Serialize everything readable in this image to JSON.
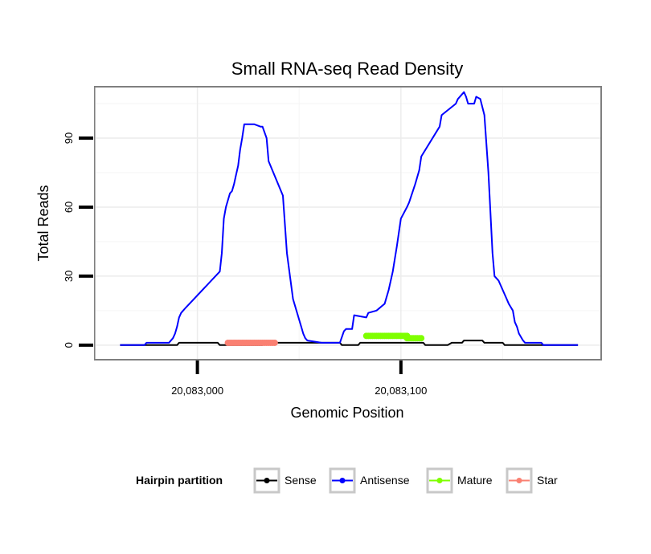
{
  "chart_data": {
    "type": "line",
    "title": "Small RNA-seq Read Density",
    "xlabel": "Genomic Position",
    "ylabel": "Total Reads",
    "xlim": [
      20082950,
      20083198
    ],
    "ylim": [
      -6,
      112
    ],
    "x_ticks": [
      {
        "value": 20083000,
        "label": "20,083,000"
      },
      {
        "value": 20083100,
        "label": "20,083,100"
      }
    ],
    "y_ticks": [
      {
        "value": 0,
        "label": "0"
      },
      {
        "value": 30,
        "label": "30"
      },
      {
        "value": 60,
        "label": "60"
      },
      {
        "value": 90,
        "label": "90"
      }
    ],
    "grid": true,
    "legend": {
      "title": "Hairpin partition",
      "position": "bottom",
      "entries": [
        {
          "name": "Sense",
          "color": "#000000"
        },
        {
          "name": "Antisense",
          "color": "#0000ff"
        },
        {
          "name": "Mature",
          "color": "#7fff00"
        },
        {
          "name": "Star",
          "color": "#fa8072"
        }
      ]
    },
    "series": [
      {
        "name": "Sense",
        "color": "#000000",
        "width": 2,
        "x": [
          20082962,
          20082990,
          20082991,
          20083010,
          20083011,
          20083032,
          20083033,
          20083070,
          20083071,
          20083079,
          20083080,
          20083085,
          20083106,
          20083111,
          20083112,
          20083123,
          20083125,
          20083130,
          20083131,
          20083140,
          20083141,
          20083145,
          20083146,
          20083150,
          20083151,
          20083187
        ],
        "y": [
          0,
          0,
          1,
          1,
          0,
          0,
          1,
          1,
          0,
          0,
          1,
          1,
          1,
          1,
          0,
          0,
          1,
          1,
          2,
          2,
          1,
          1,
          1,
          1,
          0,
          0
        ]
      },
      {
        "name": "Antisense",
        "color": "#0000ff",
        "width": 2,
        "x": [
          20082962,
          20082974,
          20082975,
          20082986,
          20082987,
          20082988,
          20082989,
          20082990,
          20082991,
          20082992,
          20082993,
          20082994,
          20083011,
          20083012,
          20083013,
          20083014,
          20083015,
          20083016,
          20083017,
          20083018,
          20083019,
          20083020,
          20083021,
          20083022,
          20083023,
          20083028,
          20083031,
          20083032,
          20083034,
          20083035,
          20083042,
          20083044,
          20083047,
          20083051,
          20083052,
          20083053,
          20083054,
          20083061,
          20083064,
          20083070,
          20083072,
          20083073,
          20083076,
          20083077,
          20083083,
          20083084,
          20083088,
          20083092,
          20083094,
          20083096,
          20083098,
          20083100,
          20083103,
          20083104,
          20083107,
          20083109,
          20083110,
          20083119,
          20083120,
          20083127,
          20083128,
          20083131,
          20083132,
          20083133,
          20083134,
          20083135,
          20083136,
          20083137,
          20083139,
          20083141,
          20083143,
          20083145,
          20083146,
          20083148,
          20083152,
          20083153,
          20083155,
          20083156,
          20083157,
          20083158,
          20083160,
          20083161,
          20083169,
          20083170,
          20083175,
          20083176,
          20083187
        ],
        "y": [
          0,
          0,
          1,
          1,
          2,
          3,
          5,
          8,
          12,
          14,
          15,
          16,
          32,
          40,
          55,
          60,
          63,
          66,
          67,
          70,
          74,
          78,
          85,
          90,
          96,
          96,
          95,
          95,
          90,
          80,
          65,
          40,
          20,
          8,
          5,
          3,
          2,
          1,
          1,
          1,
          6,
          7,
          7,
          13,
          12,
          14,
          15,
          18,
          24,
          32,
          43,
          55,
          60,
          62,
          70,
          76,
          82,
          95,
          100,
          105,
          107,
          110,
          108,
          105,
          105,
          105,
          105,
          108,
          107,
          100,
          75,
          40,
          30,
          28,
          20,
          18,
          15,
          10,
          8,
          5,
          2,
          1,
          1,
          0,
          0,
          0,
          0
        ]
      }
    ],
    "segments": [
      {
        "name": "Star",
        "color": "#fa8072",
        "x_start": 20083015,
        "x_end": 20083038,
        "y": 1
      },
      {
        "name": "Mature",
        "color": "#7fff00",
        "x_start": 20083083,
        "x_end": 20083103,
        "y": 4
      },
      {
        "name": "Mature",
        "color": "#7fff00",
        "x_start": 20083103,
        "x_end": 20083110,
        "y": 3
      }
    ]
  }
}
